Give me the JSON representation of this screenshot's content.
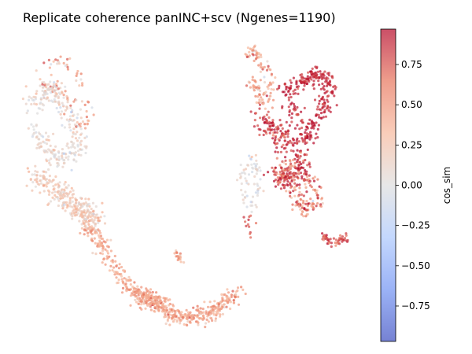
{
  "chart_data": {
    "type": "scatter",
    "title": "Replicate coherence panINC+scv (Ngenes=1190)",
    "xlabel": "",
    "ylabel": "",
    "axes_visible": false,
    "colorbar": {
      "label": "cos_sim",
      "range": [
        -0.97,
        0.97
      ],
      "ticks": [
        "0.75",
        "0.50",
        "0.25",
        "0.00",
        "−0.25",
        "−0.50",
        "−0.75"
      ],
      "tick_values": [
        0.75,
        0.5,
        0.25,
        0.0,
        -0.25,
        -0.5,
        -0.75
      ],
      "colormap": "coolwarm",
      "colors": [
        "#3b4cc0",
        "#7092f3",
        "#aac7fd",
        "#dddddd",
        "#f7b89c",
        "#e7745b",
        "#b40426"
      ]
    },
    "point_alpha": 0.7,
    "clusters": [
      {
        "x": [
          0.07,
          0.09,
          0.12,
          0.16,
          0.18,
          0.19,
          0.2,
          0.18,
          0.16,
          0.14,
          0.12,
          0.1,
          0.08,
          0.06
        ],
        "y": [
          0.91,
          0.95,
          0.96,
          0.93,
          0.88,
          0.83,
          0.76,
          0.72,
          0.74,
          0.8,
          0.85,
          0.87,
          0.86,
          0.88
        ],
        "n": 90,
        "spread": 0.012,
        "mean": 0.45,
        "sd": 0.25
      },
      {
        "x": [
          0.02,
          0.05,
          0.08,
          0.11,
          0.14,
          0.16,
          0.17,
          0.15,
          0.12,
          0.09,
          0.06,
          0.03
        ],
        "y": [
          0.8,
          0.83,
          0.85,
          0.82,
          0.78,
          0.72,
          0.66,
          0.62,
          0.6,
          0.62,
          0.66,
          0.72
        ],
        "n": 260,
        "spread": 0.018,
        "mean": 0.08,
        "sd": 0.12
      },
      {
        "x": [
          0.04,
          0.07,
          0.1,
          0.13,
          0.16,
          0.18,
          0.2,
          0.21,
          0.22
        ],
        "y": [
          0.56,
          0.52,
          0.49,
          0.46,
          0.44,
          0.42,
          0.4,
          0.38,
          0.36
        ],
        "n": 300,
        "spread": 0.02,
        "mean": 0.22,
        "sd": 0.12
      },
      {
        "x": [
          0.2,
          0.23,
          0.26,
          0.29,
          0.32,
          0.35,
          0.38,
          0.41,
          0.44
        ],
        "y": [
          0.36,
          0.31,
          0.26,
          0.2,
          0.15,
          0.12,
          0.1,
          0.09,
          0.08
        ],
        "n": 280,
        "spread": 0.014,
        "mean": 0.42,
        "sd": 0.12
      },
      {
        "x": [
          0.36,
          0.4,
          0.44,
          0.48,
          0.52,
          0.56,
          0.6,
          0.63,
          0.66
        ],
        "y": [
          0.12,
          0.09,
          0.06,
          0.04,
          0.03,
          0.04,
          0.06,
          0.09,
          0.12
        ],
        "n": 330,
        "spread": 0.015,
        "mean": 0.42,
        "sd": 0.13
      },
      {
        "x": [
          0.47,
          0.48,
          0.49
        ],
        "y": [
          0.27,
          0.25,
          0.23
        ],
        "n": 18,
        "spread": 0.006,
        "mean": 0.45,
        "sd": 0.1
      },
      {
        "x": [
          0.7,
          0.71,
          0.72,
          0.74,
          0.75,
          0.76,
          0.77,
          0.75,
          0.73,
          0.72,
          0.71
        ],
        "y": [
          0.97,
          1.0,
          0.98,
          0.95,
          0.92,
          0.88,
          0.84,
          0.8,
          0.82,
          0.86,
          0.9
        ],
        "n": 120,
        "spread": 0.01,
        "mean": 0.42,
        "sd": 0.2
      },
      {
        "x": [
          0.71,
          0.72,
          0.73,
          0.72,
          0.7,
          0.69,
          0.68,
          0.69
        ],
        "y": [
          0.62,
          0.57,
          0.51,
          0.45,
          0.42,
          0.48,
          0.54,
          0.59
        ],
        "n": 70,
        "spread": 0.01,
        "mean": 0.05,
        "sd": 0.12
      },
      {
        "x": [
          0.74,
          0.77,
          0.8,
          0.83,
          0.86,
          0.84,
          0.81,
          0.78
        ],
        "y": [
          0.75,
          0.72,
          0.68,
          0.64,
          0.6,
          0.54,
          0.52,
          0.58
        ],
        "n": 260,
        "spread": 0.018,
        "mean": 0.88,
        "sd": 0.14
      },
      {
        "x": [
          0.8,
          0.83,
          0.86,
          0.88,
          0.9,
          0.92,
          0.94,
          0.95,
          0.93,
          0.91,
          0.89,
          0.87,
          0.85,
          0.83
        ],
        "y": [
          0.84,
          0.86,
          0.87,
          0.89,
          0.91,
          0.9,
          0.88,
          0.84,
          0.8,
          0.75,
          0.7,
          0.66,
          0.74,
          0.8
        ],
        "n": 300,
        "spread": 0.014,
        "mean": 0.9,
        "sd": 0.08
      },
      {
        "x": [
          0.8,
          0.82,
          0.85,
          0.88,
          0.91,
          0.9,
          0.86,
          0.83
        ],
        "y": [
          0.58,
          0.52,
          0.45,
          0.42,
          0.44,
          0.5,
          0.56,
          0.6
        ],
        "n": 150,
        "spread": 0.015,
        "mean": 0.6,
        "sd": 0.25
      },
      {
        "x": [
          0.92,
          0.94,
          0.96,
          0.98,
          1.0
        ],
        "y": [
          0.33,
          0.31,
          0.3,
          0.31,
          0.32
        ],
        "n": 50,
        "spread": 0.008,
        "mean": 0.78,
        "sd": 0.12
      },
      {
        "x": [
          0.69,
          0.7,
          0.71
        ],
        "y": [
          0.4,
          0.35,
          0.31
        ],
        "n": 12,
        "spread": 0.008,
        "mean": 0.75,
        "sd": 0.1
      }
    ]
  }
}
